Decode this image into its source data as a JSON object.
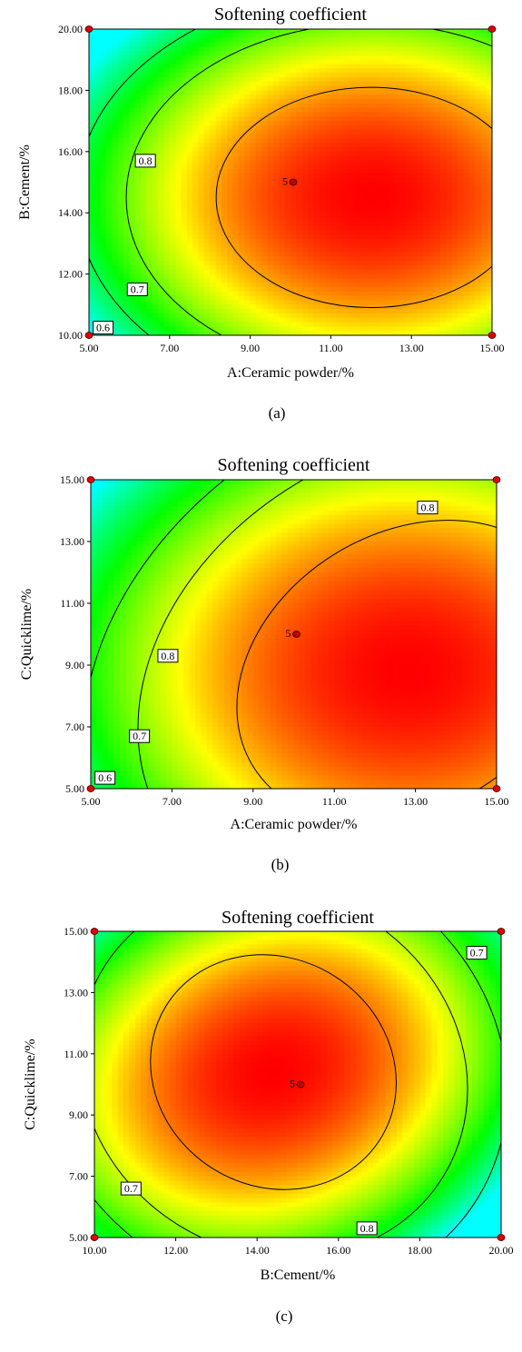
{
  "chart_data": [
    {
      "type": "heatmap",
      "subtype": "contour",
      "panel": "(a)",
      "title": "Softening coefficient",
      "xlabel": "A:Ceramic powder/%",
      "ylabel": "B:Cement/%",
      "xlim": [
        5,
        15
      ],
      "ylim": [
        10,
        20
      ],
      "xticks": [
        "5.00",
        "7.00",
        "9.00",
        "11.00",
        "13.00",
        "15.00"
      ],
      "yticks": [
        "10.00",
        "12.00",
        "14.00",
        "16.00",
        "18.00",
        "20.00"
      ],
      "contour_labels": [
        {
          "text": "0.8",
          "x": 6.4,
          "y": 15.7
        },
        {
          "text": "0.7",
          "x": 6.2,
          "y": 11.5
        },
        {
          "text": "0.6",
          "x": 5.35,
          "y": 10.25
        }
      ],
      "center_point": {
        "x": 10,
        "y": 15,
        "label": "5"
      },
      "design_points": [
        [
          5,
          10
        ],
        [
          5,
          20
        ],
        [
          15,
          10
        ],
        [
          15,
          20
        ]
      ],
      "colormap": [
        "#0000ff",
        "#00ffff",
        "#00ff00",
        "#ffff00",
        "#ff0000"
      ]
    },
    {
      "type": "heatmap",
      "subtype": "contour",
      "panel": "(b)",
      "title": "Softening coefficient",
      "xlabel": "A:Ceramic powder/%",
      "ylabel": "C:Quicklime/%",
      "xlim": [
        5,
        15
      ],
      "ylim": [
        5,
        15
      ],
      "xticks": [
        "5.00",
        "7.00",
        "9.00",
        "11.00",
        "13.00",
        "15.00"
      ],
      "yticks": [
        "5.00",
        "7.00",
        "9.00",
        "11.00",
        "13.00",
        "15.00"
      ],
      "contour_labels": [
        {
          "text": "0.8",
          "x": 13.3,
          "y": 14.1
        },
        {
          "text": "0.8",
          "x": 6.9,
          "y": 9.3
        },
        {
          "text": "0.7",
          "x": 6.2,
          "y": 6.7
        },
        {
          "text": "0.6",
          "x": 5.35,
          "y": 5.35
        }
      ],
      "center_point": {
        "x": 10,
        "y": 10,
        "label": "5"
      },
      "design_points": [
        [
          5,
          5
        ],
        [
          5,
          15
        ],
        [
          15,
          5
        ],
        [
          15,
          15
        ]
      ],
      "colormap": [
        "#0000ff",
        "#00ffff",
        "#00ff00",
        "#ffff00",
        "#ff0000"
      ]
    },
    {
      "type": "heatmap",
      "subtype": "contour",
      "panel": "(c)",
      "title": "Softening coefficient",
      "xlabel": "B:Cement/%",
      "ylabel": "C:Quicklime/%",
      "xlim": [
        10,
        20
      ],
      "ylim": [
        5,
        15
      ],
      "xticks": [
        "10.00",
        "12.00",
        "14.00",
        "16.00",
        "18.00",
        "20.00"
      ],
      "yticks": [
        "5.00",
        "7.00",
        "9.00",
        "11.00",
        "13.00",
        "15.00"
      ],
      "contour_labels": [
        {
          "text": "0.7",
          "x": 19.4,
          "y": 14.3
        },
        {
          "text": "0.7",
          "x": 10.9,
          "y": 6.6
        },
        {
          "text": "0.8",
          "x": 16.7,
          "y": 5.3
        }
      ],
      "center_point": {
        "x": 15,
        "y": 10,
        "label": "5"
      },
      "design_points": [
        [
          10,
          5
        ],
        [
          10,
          15
        ],
        [
          20,
          5
        ],
        [
          20,
          15
        ]
      ],
      "colormap": [
        "#0000ff",
        "#00ffff",
        "#00ff00",
        "#ffff00",
        "#ff0000"
      ]
    }
  ]
}
